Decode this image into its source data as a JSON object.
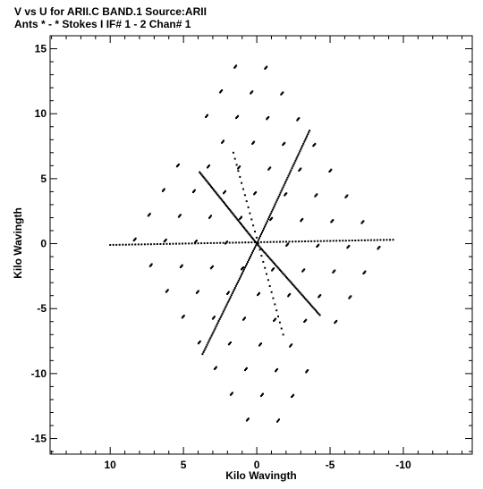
{
  "chart_data": {
    "type": "scatter",
    "title": "V vs U for ARII.C BAND.1   Source:ARII",
    "subtitle": "Ants * - *    Stokes I  IF# 1 - 2  Chan# 1",
    "xlabel": "Kilo Wavingth",
    "ylabel": "Kilo Wavingth",
    "xlim": [
      14.1,
      -14.7
    ],
    "ylim": [
      -16.2,
      16.0
    ],
    "x_reversed": true,
    "grid": false,
    "xticks": [
      10,
      5,
      0,
      -5,
      -10
    ],
    "yticks": [
      15,
      10,
      5,
      0,
      -5,
      -10,
      -15
    ],
    "xtick_labels": [
      "10",
      "5",
      "0",
      "-5",
      "-10"
    ],
    "ytick_labels": [
      "15",
      "10",
      "5",
      "0",
      "-5",
      "-10",
      "-15"
    ],
    "marker_color": "#000000",
    "pattern": {
      "description_of_sampling": "six-armed uv-coverage star built from a triangular lattice of baselines",
      "lattice_vectors": [
        [
          -1.1,
          1.9
        ],
        [
          1.1,
          1.9
        ]
      ],
      "lattice_range": [
        -4,
        4
      ],
      "diagonal_spokes": [
        {
          "from": [
            0,
            0
          ],
          "to": [
            -3.6,
            8.7
          ]
        },
        {
          "from": [
            0,
            0
          ],
          "to": [
            3.7,
            -8.5
          ]
        },
        {
          "from": [
            0,
            0
          ],
          "to": [
            3.9,
            5.5
          ]
        },
        {
          "from": [
            0,
            0
          ],
          "to": [
            -4.3,
            -5.5
          ]
        }
      ],
      "horizontal_spoke": {
        "from": [
          10.0,
          -0.1
        ],
        "to": [
          -9.3,
          0.3
        ]
      },
      "inner_cross_spoke": {
        "from": [
          -1.8,
          -7.0
        ],
        "to": [
          1.6,
          7.0
        ]
      }
    }
  }
}
